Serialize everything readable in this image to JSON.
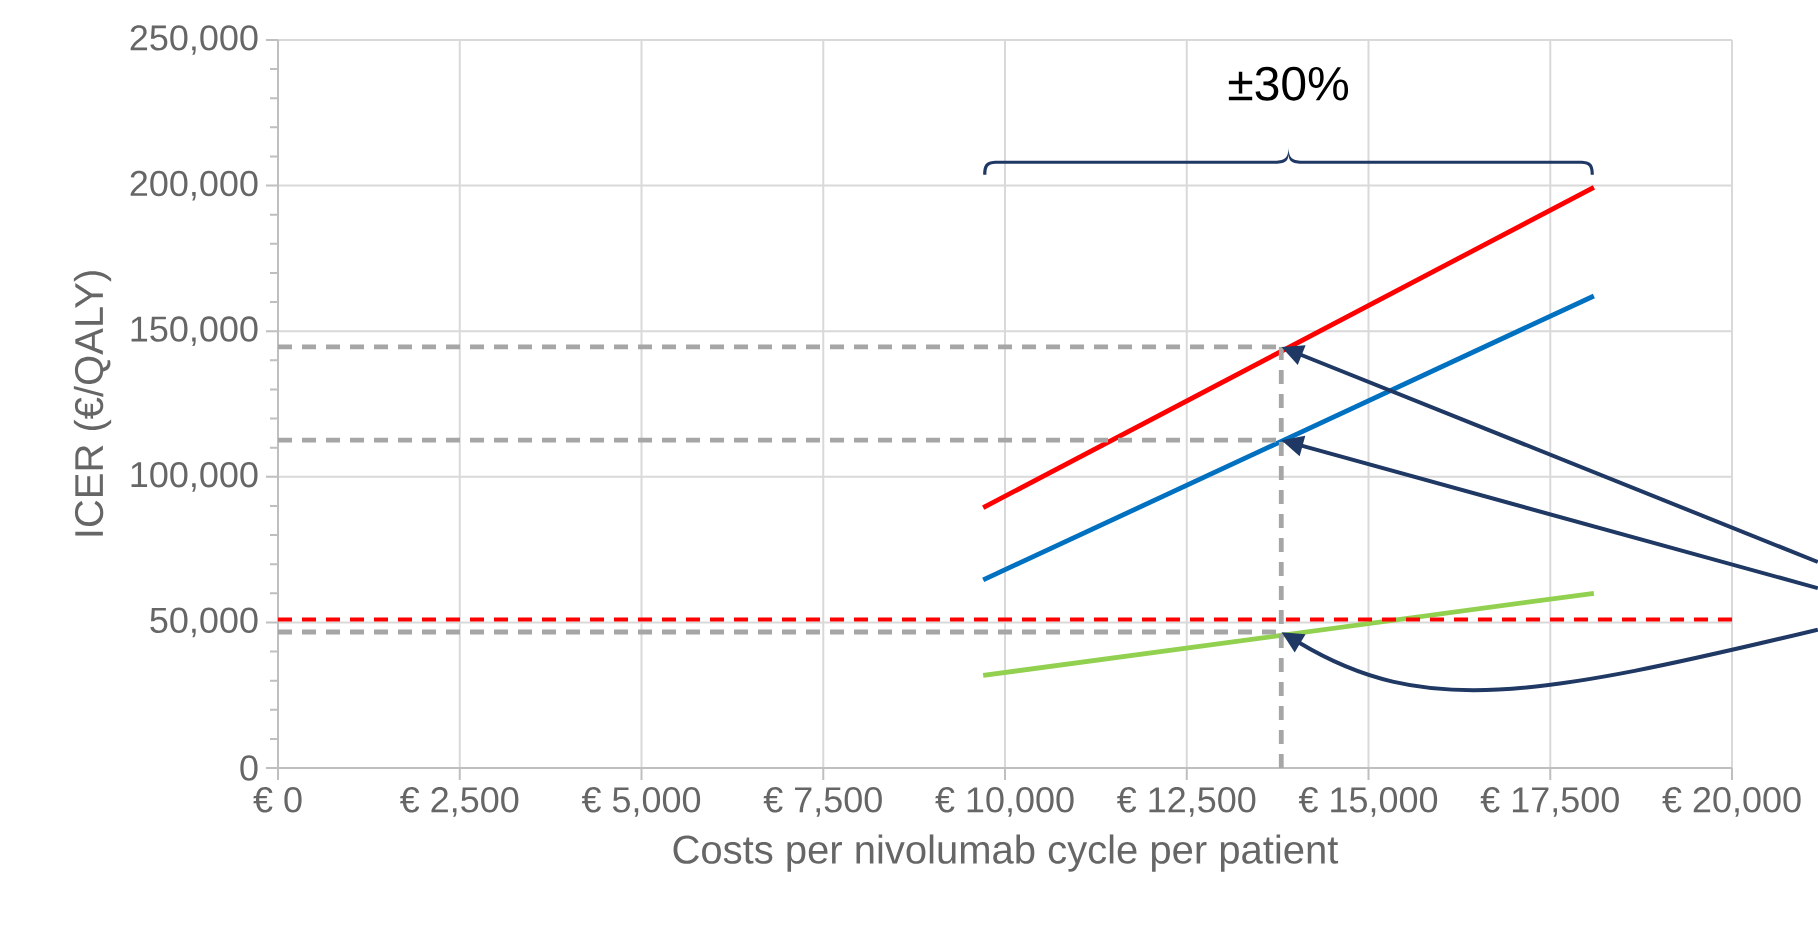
{
  "chart_data": {
    "type": "line",
    "xlabel": "Costs per nivolumab cycle per patient",
    "ylabel": "ICER (€/QALY)",
    "annotations": [
      "±30%"
    ],
    "xlim": [
      0,
      20000
    ],
    "ylim": [
      0,
      250000
    ],
    "xticks": [
      {
        "value": 0,
        "label": "€ 0"
      },
      {
        "value": 2500,
        "label": "€ 2,500"
      },
      {
        "value": 5000,
        "label": "€ 5,000"
      },
      {
        "value": 7500,
        "label": "€ 7,500"
      },
      {
        "value": 10000,
        "label": "€ 10,000"
      },
      {
        "value": 12500,
        "label": "€ 12,500"
      },
      {
        "value": 15000,
        "label": "€ 15,000"
      },
      {
        "value": 17500,
        "label": "€ 17,500"
      },
      {
        "value": 20000,
        "label": "€ 20,000"
      }
    ],
    "yticks": [
      {
        "value": 0,
        "label": "0"
      },
      {
        "value": 50000,
        "label": "50,000"
      },
      {
        "value": 100000,
        "label": "100,000"
      },
      {
        "value": 150000,
        "label": "150,000"
      },
      {
        "value": 200000,
        "label": "200,000"
      },
      {
        "value": 250000,
        "label": "250,000"
      }
    ],
    "grid": true,
    "marker": "none",
    "ref_lines": [
      {
        "axis": "y",
        "value": 51000,
        "color": "#ff0000",
        "line_style": "dashed"
      }
    ],
    "series": [
      {
        "color": "#ff0000",
        "line_style": "solid",
        "x": [
          9700,
          18100
        ],
        "values": [
          89400,
          199400
        ]
      },
      {
        "color": "#0070c0",
        "line_style": "solid",
        "x": [
          9700,
          18100
        ],
        "values": [
          64600,
          162100
        ]
      },
      {
        "color": "#92d050",
        "line_style": "solid",
        "x": [
          9700,
          18100
        ],
        "values": [
          31800,
          60000
        ]
      },
      {
        "color": "#a6a6a6",
        "line_style": "dashed",
        "x": [
          0,
          13800
        ],
        "values": [
          144600,
          144600
        ]
      },
      {
        "color": "#a6a6a6",
        "line_style": "dashed",
        "x": [
          0,
          13800
        ],
        "values": [
          112600,
          112600
        ]
      },
      {
        "color": "#a6a6a6",
        "line_style": "dashed",
        "x": [
          0,
          13800
        ],
        "values": [
          46700,
          46700
        ]
      },
      {
        "color": "#a6a6a6",
        "line_style": "dashed",
        "x": [
          13800,
          13800
        ],
        "values": [
          0,
          144600
        ]
      }
    ]
  }
}
